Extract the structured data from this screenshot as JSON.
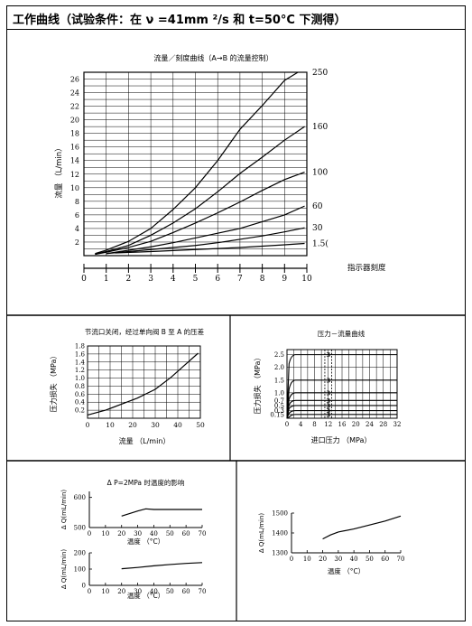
{
  "header": {
    "title": "工作曲线（试验条件：在 ν =41mm ²/s 和 t=50°C 下测得）"
  },
  "chart_data": [
    {
      "id": "main",
      "type": "line",
      "title": "流量／刻度曲线（A→B 的流量控制）",
      "xlabel": "指示器刻度",
      "ylabel": "流量 （L/min）",
      "xlim": [
        0,
        10
      ],
      "ylim": [
        0,
        27
      ],
      "xticks": [
        0,
        1,
        2,
        3,
        4,
        5,
        6,
        7,
        8,
        9,
        10
      ],
      "yticks": [
        2,
        4,
        6,
        8,
        10,
        12,
        14,
        16,
        18,
        20,
        22,
        24,
        26
      ],
      "grid": true,
      "series": [
        {
          "name": "250",
          "x": [
            0.5,
            1,
            2,
            3,
            4,
            5,
            6,
            7,
            8,
            9,
            9.6
          ],
          "y": [
            0.3,
            0.8,
            2.1,
            4,
            6.8,
            10,
            14,
            18.6,
            22.1,
            25.8,
            27
          ]
        },
        {
          "name": "160",
          "x": [
            0.5,
            1,
            2,
            3,
            4,
            5,
            6,
            7,
            8,
            9,
            9.9
          ],
          "y": [
            0.2,
            0.6,
            1.5,
            3,
            4.8,
            6.9,
            9.4,
            12.1,
            14.5,
            17,
            19
          ]
        },
        {
          "name": "100",
          "x": [
            0.5,
            1,
            2,
            3,
            4,
            5,
            6,
            7,
            8,
            9,
            9.9
          ],
          "y": [
            0.2,
            0.5,
            1.2,
            2.1,
            3.4,
            4.8,
            6.3,
            7.9,
            9.6,
            11.2,
            12.3
          ]
        },
        {
          "name": "60",
          "x": [
            1,
            2,
            3,
            4,
            5,
            6,
            7,
            8,
            9,
            9.9
          ],
          "y": [
            0.3,
            0.8,
            1.3,
            1.9,
            2.6,
            3.3,
            4,
            5,
            6,
            7.3
          ]
        },
        {
          "name": "30",
          "x": [
            1,
            2,
            3,
            4,
            5,
            6,
            7,
            8,
            9,
            9.9
          ],
          "y": [
            0.3,
            0.6,
            0.9,
            1.2,
            1.5,
            1.9,
            2.4,
            2.9,
            3.5,
            4.1
          ]
        },
        {
          "name": "1.5(",
          "x": [
            1.4,
            3,
            5,
            7,
            9,
            9.9
          ],
          "y": [
            0.4,
            0.6,
            0.9,
            1.2,
            1.6,
            1.8
          ]
        }
      ]
    },
    {
      "id": "pressure-loss",
      "type": "line",
      "title": "节流口关闭，经过单向阀 B 至 A 的压差",
      "xlabel": "流量 （L/min）",
      "ylabel": "压力损失 （MPa）",
      "xlim": [
        0,
        50
      ],
      "ylim": [
        0,
        1.8
      ],
      "xticks": [
        10,
        20,
        30,
        40,
        50
      ],
      "xticklabels": [
        "10",
        "20",
        "30",
        "40",
        "50"
      ],
      "yticks": [
        0.2,
        0.4,
        0.6,
        0.8,
        1.0,
        1.2,
        1.4,
        1.6,
        1.8
      ],
      "yticklabels": [
        "0.2",
        "0.4",
        "0.6",
        "0.8",
        "1.0",
        "1.2",
        "1.4",
        "1.6",
        "1.8"
      ],
      "grid": true,
      "series": [
        {
          "x": [
            0,
            8,
            15,
            22,
            30,
            37,
            43,
            49
          ],
          "y": [
            0.08,
            0.2,
            0.35,
            0.5,
            0.72,
            1.02,
            1.32,
            1.62
          ]
        }
      ]
    },
    {
      "id": "pressure-flow",
      "type": "line",
      "title": "压力－流量曲线",
      "xlabel": "进口压力 （MPa）",
      "ylabel": "压力损失 （MPa）",
      "xlim": [
        0,
        32
      ],
      "ylim": [
        0,
        2.7
      ],
      "xticks": [
        0,
        4,
        8,
        12,
        16,
        20,
        24,
        28,
        32
      ],
      "xticklabels": [
        "0",
        "4",
        "8",
        "12",
        "16",
        "20",
        "24",
        "28",
        "32"
      ],
      "yticks": [
        0.15,
        0.3,
        0.5,
        0.7,
        1.0,
        1.5,
        2.0,
        2.5
      ],
      "yticklabels": [
        "0.15",
        "0.3",
        "0.5",
        "0.7",
        "1.0",
        "1.5",
        "2.0",
        "2.5"
      ],
      "grid": true,
      "series": [
        {
          "name": "2.5",
          "y": 2.5
        },
        {
          "name": "1.5",
          "y": 1.5
        },
        {
          "name": "1.0",
          "y": 1.0
        },
        {
          "name": "0.7",
          "y": 0.7
        },
        {
          "name": "0.5",
          "y": 0.5
        },
        {
          "name": "0.3",
          "y": 0.3
        },
        {
          "name": "0.15",
          "y": 0.15
        }
      ],
      "dashed_x": [
        11,
        13
      ],
      "marker_label": "3"
    },
    {
      "id": "temp-600",
      "type": "line",
      "title": "Δ P=2MPa 时温度的影响",
      "xlabel": "温度 （°C）",
      "ylabel": "Δ Q(mL/min)",
      "xlim": [
        0,
        70
      ],
      "ylim": [
        500,
        620
      ],
      "xticks": [
        0,
        10,
        20,
        30,
        40,
        50,
        60,
        70
      ],
      "xticklabels": [
        "0",
        "10",
        "20",
        "30",
        "40",
        "50",
        "60",
        "70"
      ],
      "yticks": [
        500,
        600
      ],
      "yticklabels": [
        "500",
        "600"
      ],
      "grid": false,
      "series": [
        {
          "x": [
            20,
            30,
            35,
            40,
            50,
            60,
            70
          ],
          "y": [
            538,
            555,
            562,
            560,
            560,
            560,
            560
          ]
        }
      ]
    },
    {
      "id": "temp-200",
      "type": "line",
      "title": "",
      "xlabel": "温度 （°C）",
      "ylabel": "Δ Q(mL/min)",
      "xlim": [
        0,
        70
      ],
      "ylim": [
        0,
        200
      ],
      "xticks": [
        0,
        10,
        20,
        30,
        40,
        50,
        60,
        70
      ],
      "xticklabels": [
        "0",
        "10",
        "20",
        "30",
        "40",
        "50",
        "60",
        "70"
      ],
      "yticks": [
        0,
        100,
        200
      ],
      "yticklabels": [
        "0",
        "100",
        "200"
      ],
      "grid": false,
      "series": [
        {
          "x": [
            20,
            30,
            40,
            50,
            60,
            70
          ],
          "y": [
            102,
            110,
            120,
            128,
            135,
            140
          ]
        }
      ]
    },
    {
      "id": "temp-1500",
      "type": "line",
      "title": "",
      "xlabel": "温度 （°C）",
      "ylabel": "Δ Q(mL/min)",
      "xlim": [
        0,
        70
      ],
      "ylim": [
        1300,
        1500
      ],
      "xticks": [
        0,
        10,
        20,
        30,
        40,
        50,
        60,
        70
      ],
      "xticklabels": [
        "0",
        "10",
        "20",
        "30",
        "40",
        "50",
        "60",
        "70"
      ],
      "yticks": [
        1300,
        1400,
        1500
      ],
      "yticklabels": [
        "1300",
        "1400",
        "1500"
      ],
      "grid": false,
      "series": [
        {
          "x": [
            20,
            25,
            30,
            40,
            50,
            60,
            70
          ],
          "y": [
            1370,
            1390,
            1405,
            1420,
            1440,
            1460,
            1485
          ]
        }
      ]
    }
  ]
}
